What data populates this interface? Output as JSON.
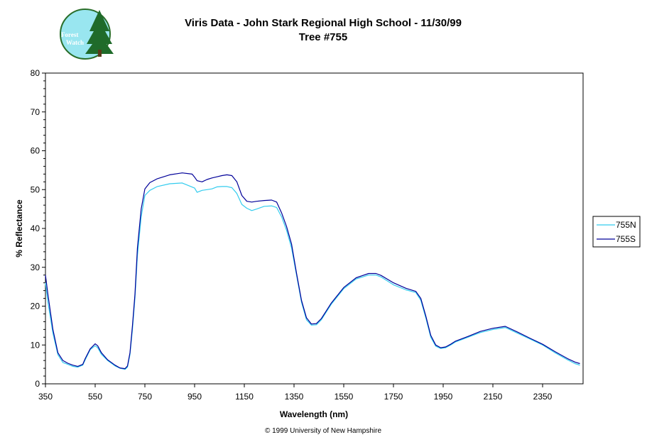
{
  "chart_data": {
    "type": "line",
    "title": "Viris Data - John Stark Regional High School - 11/30/99",
    "subtitle": "Tree #755",
    "xlabel": "Wavelength (nm)",
    "ylabel": "% Reflectance",
    "xlim": [
      350,
      2500
    ],
    "ylim": [
      0,
      80
    ],
    "x_ticks": [
      350,
      550,
      750,
      950,
      1150,
      1350,
      1550,
      1750,
      1950,
      2150,
      2350
    ],
    "y_ticks": [
      0,
      10,
      20,
      30,
      40,
      50,
      60,
      70,
      80
    ],
    "grid": false,
    "legend_position": "right",
    "series": [
      {
        "name": "755N",
        "color": "#33CCEE",
        "x": [
          350,
          360,
          380,
          400,
          420,
          440,
          460,
          480,
          500,
          510,
          530,
          550,
          560,
          575,
          600,
          630,
          650,
          670,
          680,
          690,
          700,
          710,
          720,
          735,
          750,
          770,
          800,
          850,
          900,
          950,
          960,
          980,
          1000,
          1020,
          1040,
          1060,
          1080,
          1100,
          1120,
          1140,
          1160,
          1180,
          1200,
          1230,
          1260,
          1280,
          1300,
          1320,
          1340,
          1360,
          1380,
          1400,
          1420,
          1440,
          1460,
          1480,
          1500,
          1550,
          1600,
          1650,
          1680,
          1700,
          1750,
          1800,
          1840,
          1860,
          1880,
          1900,
          1920,
          1940,
          1960,
          1980,
          2000,
          2050,
          2100,
          2150,
          2200,
          2250,
          2300,
          2350,
          2400,
          2450,
          2480,
          2500
        ],
        "y": [
          26,
          21,
          13,
          7.5,
          5.5,
          5,
          4.5,
          4.3,
          4.8,
          6.2,
          8.8,
          9.8,
          9.3,
          7.6,
          6,
          4.6,
          4,
          3.7,
          4.3,
          7.5,
          14,
          22,
          33,
          43,
          48.5,
          49.8,
          50.8,
          51.5,
          51.7,
          50.4,
          49.3,
          49.8,
          50,
          50.2,
          50.7,
          50.8,
          50.8,
          50.5,
          49,
          46.2,
          45.2,
          44.6,
          45,
          45.7,
          45.8,
          45.4,
          43,
          39.5,
          35,
          28,
          21,
          16.5,
          15.1,
          15.2,
          16.5,
          18.5,
          20.5,
          24.5,
          27,
          28,
          28,
          27.5,
          25.5,
          24.2,
          23.5,
          21.5,
          17,
          12,
          9.7,
          9.1,
          9.3,
          10,
          10.8,
          12,
          13.2,
          14,
          14.5,
          13,
          11.5,
          10,
          8,
          6.2,
          5.2,
          4.8
        ]
      },
      {
        "name": "755S",
        "color": "#000099",
        "x": [
          350,
          360,
          380,
          400,
          420,
          440,
          460,
          480,
          500,
          510,
          530,
          550,
          560,
          575,
          600,
          630,
          650,
          670,
          680,
          690,
          700,
          710,
          720,
          735,
          750,
          770,
          800,
          850,
          900,
          940,
          950,
          960,
          980,
          1000,
          1020,
          1040,
          1060,
          1080,
          1100,
          1120,
          1140,
          1160,
          1180,
          1200,
          1230,
          1260,
          1280,
          1300,
          1320,
          1340,
          1360,
          1380,
          1400,
          1420,
          1440,
          1460,
          1480,
          1500,
          1550,
          1600,
          1650,
          1680,
          1700,
          1750,
          1800,
          1840,
          1860,
          1880,
          1900,
          1920,
          1940,
          1960,
          1980,
          2000,
          2050,
          2100,
          2150,
          2200,
          2250,
          2300,
          2350,
          2400,
          2450,
          2480,
          2500
        ],
        "y": [
          28,
          23,
          14,
          8,
          6,
          5.3,
          4.8,
          4.5,
          5,
          6.5,
          9,
          10.3,
          9.8,
          8,
          6.2,
          4.8,
          4.1,
          3.9,
          4.6,
          8,
          15,
          23,
          35,
          45,
          50.2,
          51.8,
          52.8,
          53.8,
          54.3,
          54,
          53.2,
          52.3,
          52,
          52.6,
          53,
          53.3,
          53.6,
          53.8,
          53.6,
          52,
          48.5,
          47,
          46.8,
          47,
          47.2,
          47.3,
          46.8,
          44,
          40.5,
          36,
          28.5,
          21.5,
          17,
          15.4,
          15.5,
          16.8,
          18.8,
          20.8,
          24.8,
          27.3,
          28.4,
          28.4,
          27.9,
          26,
          24.6,
          23.8,
          22,
          17.5,
          12.5,
          10,
          9.3,
          9.5,
          10.2,
          11,
          12.2,
          13.5,
          14.3,
          14.8,
          13.3,
          11.7,
          10.2,
          8.3,
          6.5,
          5.6,
          5.2
        ]
      }
    ]
  },
  "logo": {
    "text_line1": "Forest",
    "text_line2": "Watch"
  },
  "footer": {
    "copyright": "© 1999 University of New Hampshire"
  }
}
